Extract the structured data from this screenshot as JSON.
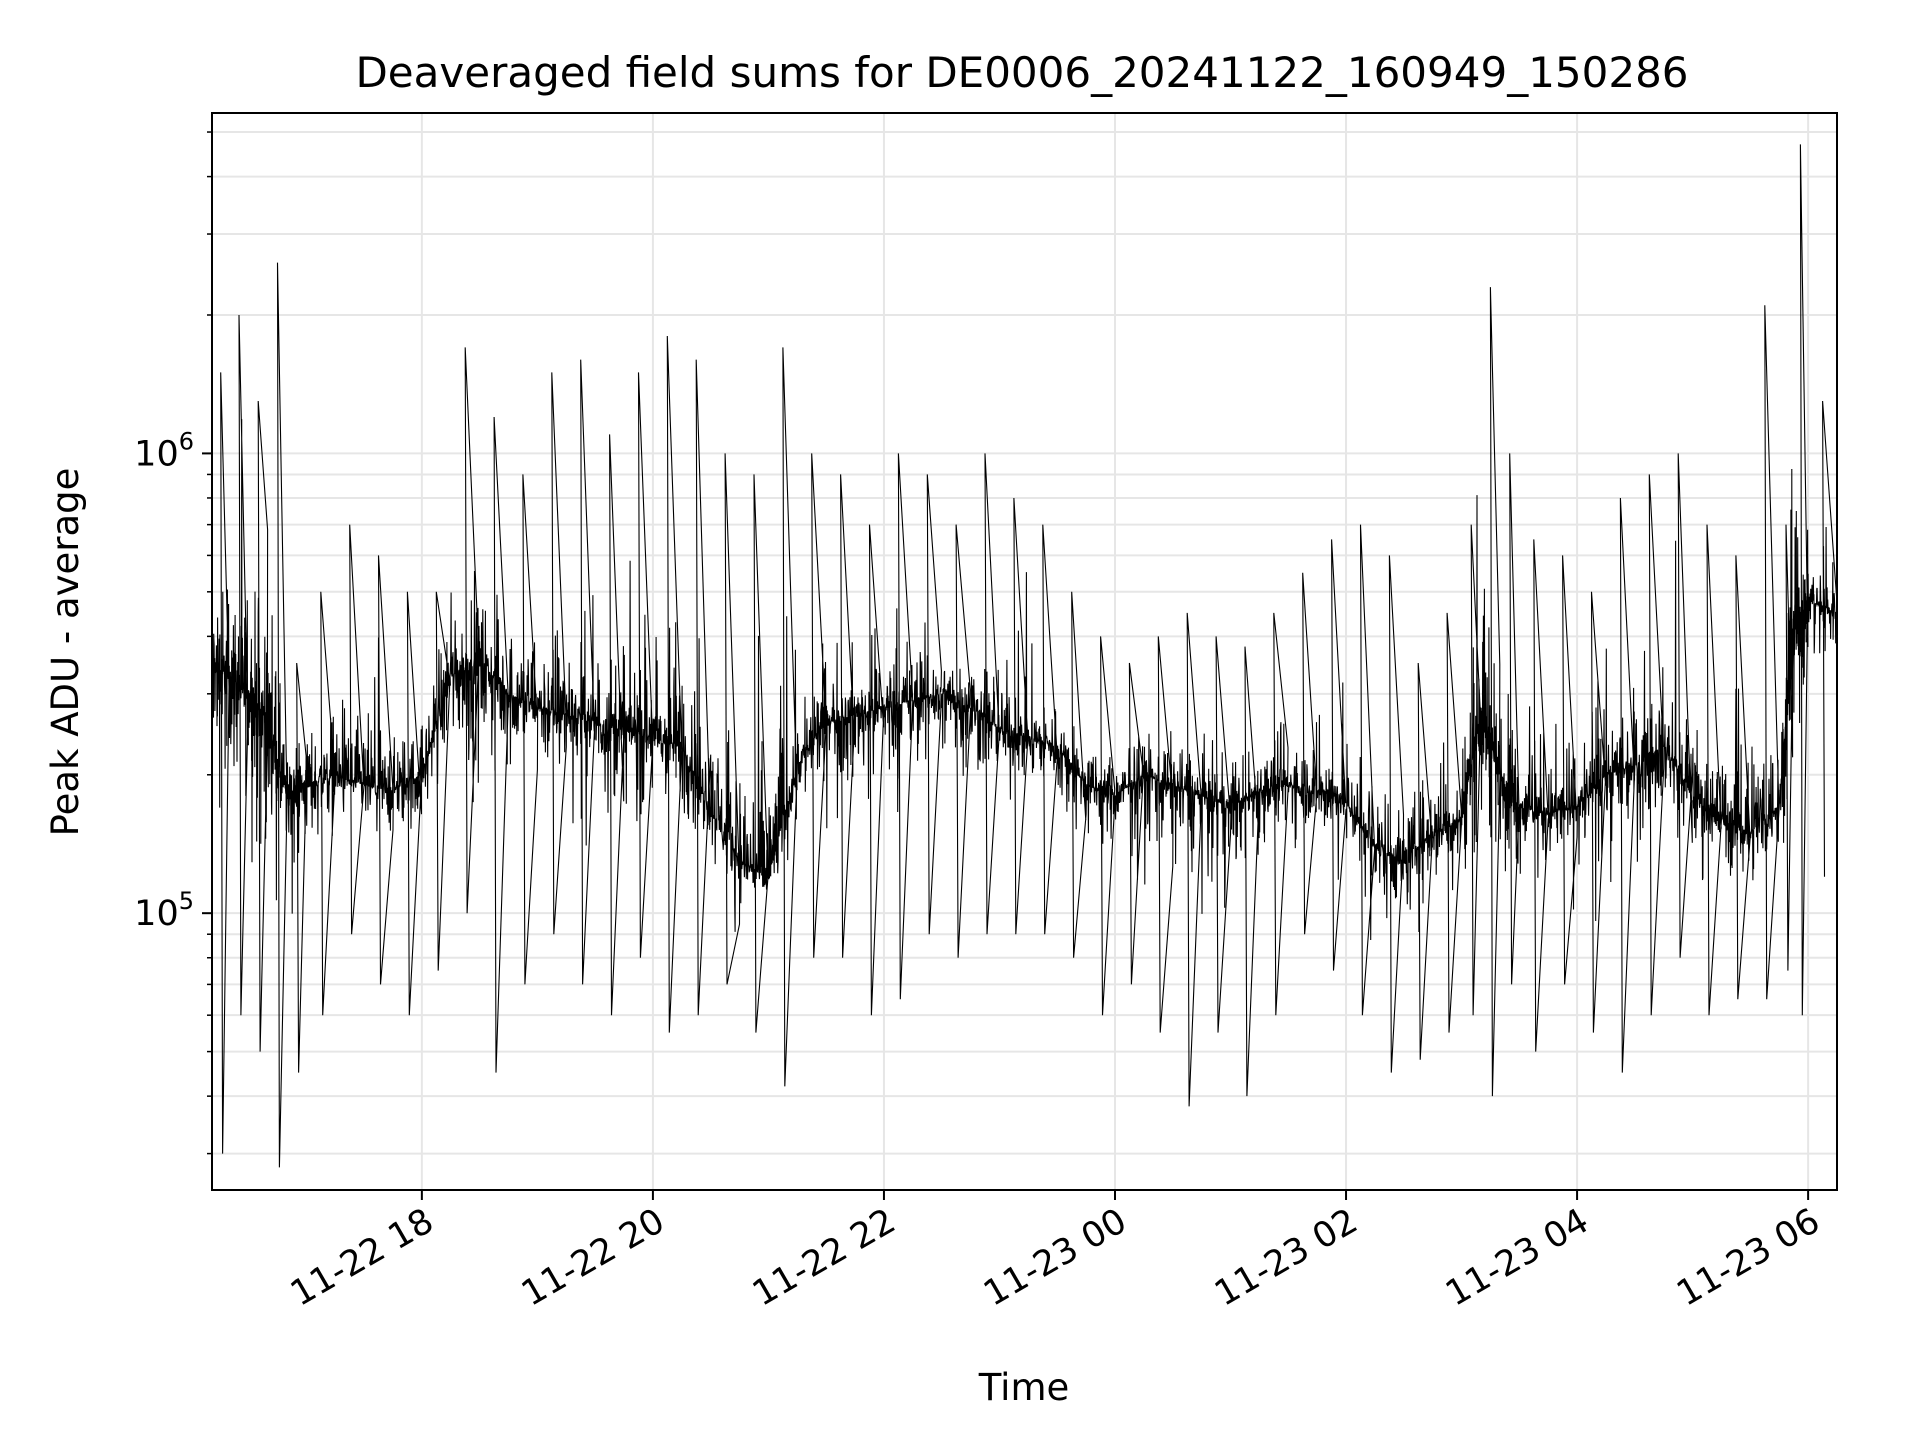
{
  "chart_data": {
    "type": "line",
    "title": "Deaveraged field sums for DE0006_20241122_160949_150286",
    "xlabel": "Time",
    "ylabel": "Peak ADU - average",
    "xlim": [
      "2024-11-22 16:11",
      "2024-11-23 06:15"
    ],
    "ylim": [
      25000,
      5500000
    ],
    "yscale": "log",
    "grid": true,
    "x_ticks": [
      {
        "value": "2024-11-22 18:00",
        "label": "11-22 18"
      },
      {
        "value": "2024-11-22 20:00",
        "label": "11-22 20"
      },
      {
        "value": "2024-11-22 22:00",
        "label": "11-22 22"
      },
      {
        "value": "2024-11-23 00:00",
        "label": "11-23 00"
      },
      {
        "value": "2024-11-23 02:00",
        "label": "11-23 02"
      },
      {
        "value": "2024-11-23 04:00",
        "label": "11-23 04"
      },
      {
        "value": "2024-11-23 06:00",
        "label": "11-23 06"
      }
    ],
    "y_ticks": [
      {
        "value": 100000,
        "base": "10",
        "exp": "5"
      },
      {
        "value": 1000000,
        "base": "10",
        "exp": "6"
      }
    ],
    "series": [
      {
        "color": "#000000",
        "x": [
          "2024-11-22 16:11",
          "2024-11-22 16:20",
          "2024-11-22 16:30",
          "2024-11-22 16:40",
          "2024-11-22 16:50",
          "2024-11-22 17:00",
          "2024-11-22 17:15",
          "2024-11-22 17:30",
          "2024-11-22 17:45",
          "2024-11-22 18:00",
          "2024-11-22 18:15",
          "2024-11-22 18:30",
          "2024-11-22 18:45",
          "2024-11-22 19:00",
          "2024-11-22 19:15",
          "2024-11-22 19:30",
          "2024-11-22 19:45",
          "2024-11-22 20:00",
          "2024-11-22 20:15",
          "2024-11-22 20:30",
          "2024-11-22 20:45",
          "2024-11-22 21:00",
          "2024-11-22 21:15",
          "2024-11-22 21:30",
          "2024-11-22 21:45",
          "2024-11-22 22:00",
          "2024-11-22 22:15",
          "2024-11-22 22:30",
          "2024-11-22 22:45",
          "2024-11-22 23:00",
          "2024-11-22 23:15",
          "2024-11-22 23:30",
          "2024-11-22 23:45",
          "2024-11-23 00:00",
          "2024-11-23 00:15",
          "2024-11-23 00:30",
          "2024-11-23 00:45",
          "2024-11-23 01:00",
          "2024-11-23 01:15",
          "2024-11-23 01:30",
          "2024-11-23 01:45",
          "2024-11-23 02:00",
          "2024-11-23 02:15",
          "2024-11-23 02:30",
          "2024-11-23 02:45",
          "2024-11-23 03:00",
          "2024-11-23 03:10",
          "2024-11-23 03:20",
          "2024-11-23 03:30",
          "2024-11-23 03:45",
          "2024-11-23 04:00",
          "2024-11-23 04:15",
          "2024-11-23 04:30",
          "2024-11-23 04:45",
          "2024-11-23 05:00",
          "2024-11-23 05:15",
          "2024-11-23 05:30",
          "2024-11-23 05:45",
          "2024-11-23 05:52",
          "2024-11-23 06:00",
          "2024-11-23 06:15"
        ],
        "center": [
          340000,
          330000,
          300000,
          260000,
          180000,
          190000,
          200000,
          190000,
          185000,
          200000,
          330000,
          350000,
          300000,
          280000,
          270000,
          260000,
          250000,
          240000,
          230000,
          170000,
          130000,
          120000,
          210000,
          260000,
          270000,
          280000,
          290000,
          300000,
          280000,
          250000,
          240000,
          230000,
          190000,
          180000,
          200000,
          190000,
          180000,
          170000,
          185000,
          190000,
          185000,
          175000,
          140000,
          130000,
          150000,
          160000,
          280000,
          200000,
          170000,
          165000,
          170000,
          200000,
          210000,
          230000,
          180000,
          160000,
          150000,
          170000,
          400000,
          480000,
          450000
        ],
        "peak": [
          1500000,
          2000000,
          1300000,
          2600000,
          350000,
          500000,
          700000,
          600000,
          500000,
          500000,
          1700000,
          1200000,
          900000,
          1500000,
          1600000,
          1100000,
          1500000,
          1800000,
          1600000,
          1000000,
          900000,
          1700000,
          1000000,
          900000,
          700000,
          1000000,
          900000,
          700000,
          1000000,
          800000,
          700000,
          500000,
          400000,
          350000,
          400000,
          450000,
          400000,
          380000,
          450000,
          550000,
          650000,
          700000,
          600000,
          350000,
          450000,
          700000,
          2300000,
          1000000,
          650000,
          600000,
          500000,
          800000,
          900000,
          1000000,
          700000,
          600000,
          2100000,
          700000,
          4700000,
          1300000,
          1100000
        ],
        "trough": [
          30000,
          60000,
          50000,
          28000,
          45000,
          60000,
          90000,
          70000,
          60000,
          75000,
          100000,
          45000,
          70000,
          90000,
          70000,
          60000,
          80000,
          55000,
          60000,
          70000,
          55000,
          42000,
          80000,
          80000,
          60000,
          65000,
          90000,
          80000,
          90000,
          90000,
          90000,
          80000,
          60000,
          70000,
          55000,
          38000,
          55000,
          40000,
          60000,
          90000,
          75000,
          60000,
          45000,
          48000,
          55000,
          60000,
          40000,
          70000,
          50000,
          70000,
          55000,
          45000,
          60000,
          80000,
          60000,
          65000,
          65000,
          75000,
          60000,
          120000,
          200000
        ]
      }
    ]
  }
}
